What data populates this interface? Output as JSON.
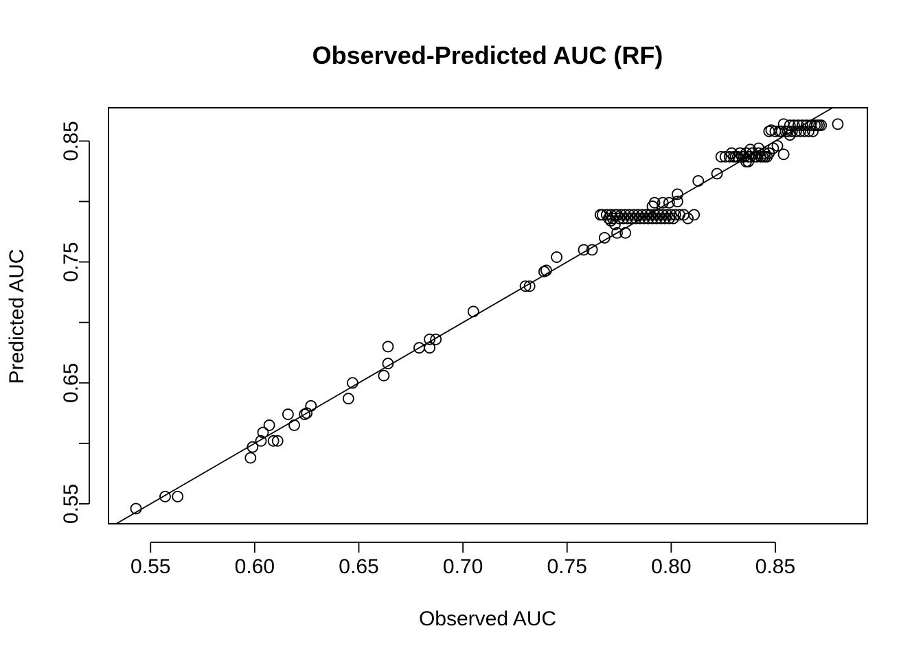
{
  "chart_data": {
    "type": "scatter",
    "title": "Observed-Predicted AUC (RF)",
    "xlabel": "Observed AUC",
    "ylabel": "Predicted AUC",
    "xlim": [
      0.5298,
      0.8942
    ],
    "ylim": [
      0.5335,
      0.8775
    ],
    "xticks": [
      0.55,
      0.6,
      0.65,
      0.7,
      0.75,
      0.8,
      0.85
    ],
    "xtick_labels": [
      "0.55",
      "0.60",
      "0.65",
      "0.70",
      "0.75",
      "0.80",
      "0.85"
    ],
    "yticks": [
      0.55,
      0.6,
      0.65,
      0.7,
      0.75,
      0.8,
      0.85
    ],
    "ytick_labels": [
      "0.55",
      "",
      "0.65",
      "",
      "0.75",
      "",
      "0.85"
    ],
    "grid": false,
    "fit_line": {
      "intercept": 0.0,
      "slope": 1.0
    },
    "points": [
      [
        0.543,
        0.546
      ],
      [
        0.557,
        0.556
      ],
      [
        0.563,
        0.556
      ],
      [
        0.598,
        0.588
      ],
      [
        0.599,
        0.597
      ],
      [
        0.603,
        0.602
      ],
      [
        0.604,
        0.609
      ],
      [
        0.607,
        0.615
      ],
      [
        0.609,
        0.602
      ],
      [
        0.611,
        0.602
      ],
      [
        0.616,
        0.624
      ],
      [
        0.619,
        0.615
      ],
      [
        0.624,
        0.624
      ],
      [
        0.625,
        0.625
      ],
      [
        0.627,
        0.631
      ],
      [
        0.645,
        0.637
      ],
      [
        0.647,
        0.65
      ],
      [
        0.662,
        0.656
      ],
      [
        0.664,
        0.666
      ],
      [
        0.664,
        0.68
      ],
      [
        0.679,
        0.679
      ],
      [
        0.684,
        0.679
      ],
      [
        0.684,
        0.686
      ],
      [
        0.687,
        0.686
      ],
      [
        0.705,
        0.709
      ],
      [
        0.73,
        0.73
      ],
      [
        0.732,
        0.73
      ],
      [
        0.739,
        0.742
      ],
      [
        0.74,
        0.743
      ],
      [
        0.745,
        0.754
      ],
      [
        0.758,
        0.76
      ],
      [
        0.762,
        0.76
      ],
      [
        0.766,
        0.789
      ],
      [
        0.767,
        0.789
      ],
      [
        0.768,
        0.77
      ],
      [
        0.769,
        0.789
      ],
      [
        0.77,
        0.786
      ],
      [
        0.771,
        0.789
      ],
      [
        0.771,
        0.784
      ],
      [
        0.772,
        0.786
      ],
      [
        0.773,
        0.789
      ],
      [
        0.773,
        0.781
      ],
      [
        0.774,
        0.774
      ],
      [
        0.774,
        0.789
      ],
      [
        0.775,
        0.786
      ],
      [
        0.776,
        0.789
      ],
      [
        0.777,
        0.786
      ],
      [
        0.778,
        0.774
      ],
      [
        0.778,
        0.789
      ],
      [
        0.779,
        0.786
      ],
      [
        0.78,
        0.789
      ],
      [
        0.781,
        0.786
      ],
      [
        0.782,
        0.789
      ],
      [
        0.783,
        0.786
      ],
      [
        0.784,
        0.789
      ],
      [
        0.785,
        0.786
      ],
      [
        0.786,
        0.789
      ],
      [
        0.787,
        0.786
      ],
      [
        0.788,
        0.789
      ],
      [
        0.789,
        0.786
      ],
      [
        0.79,
        0.789
      ],
      [
        0.791,
        0.786
      ],
      [
        0.791,
        0.796
      ],
      [
        0.792,
        0.789
      ],
      [
        0.792,
        0.799
      ],
      [
        0.793,
        0.786
      ],
      [
        0.794,
        0.789
      ],
      [
        0.795,
        0.786
      ],
      [
        0.796,
        0.789
      ],
      [
        0.796,
        0.799
      ],
      [
        0.797,
        0.786
      ],
      [
        0.798,
        0.789
      ],
      [
        0.799,
        0.799
      ],
      [
        0.799,
        0.786
      ],
      [
        0.8,
        0.789
      ],
      [
        0.801,
        0.786
      ],
      [
        0.802,
        0.789
      ],
      [
        0.803,
        0.8
      ],
      [
        0.803,
        0.806
      ],
      [
        0.804,
        0.789
      ],
      [
        0.806,
        0.789
      ],
      [
        0.808,
        0.786
      ],
      [
        0.811,
        0.789
      ],
      [
        0.813,
        0.817
      ],
      [
        0.822,
        0.823
      ],
      [
        0.824,
        0.837
      ],
      [
        0.826,
        0.837
      ],
      [
        0.828,
        0.837
      ],
      [
        0.829,
        0.84
      ],
      [
        0.83,
        0.837
      ],
      [
        0.831,
        0.837
      ],
      [
        0.832,
        0.837
      ],
      [
        0.833,
        0.84
      ],
      [
        0.834,
        0.837
      ],
      [
        0.835,
        0.837
      ],
      [
        0.836,
        0.833
      ],
      [
        0.836,
        0.84
      ],
      [
        0.837,
        0.837
      ],
      [
        0.837,
        0.833
      ],
      [
        0.838,
        0.843
      ],
      [
        0.838,
        0.837
      ],
      [
        0.839,
        0.84
      ],
      [
        0.84,
        0.837
      ],
      [
        0.841,
        0.837
      ],
      [
        0.842,
        0.844
      ],
      [
        0.842,
        0.84
      ],
      [
        0.843,
        0.837
      ],
      [
        0.844,
        0.837
      ],
      [
        0.845,
        0.84
      ],
      [
        0.845,
        0.837
      ],
      [
        0.846,
        0.837
      ],
      [
        0.847,
        0.858
      ],
      [
        0.847,
        0.84
      ],
      [
        0.848,
        0.859
      ],
      [
        0.849,
        0.844
      ],
      [
        0.85,
        0.858
      ],
      [
        0.851,
        0.846
      ],
      [
        0.852,
        0.858
      ],
      [
        0.853,
        0.858
      ],
      [
        0.854,
        0.839
      ],
      [
        0.854,
        0.864
      ],
      [
        0.855,
        0.858
      ],
      [
        0.856,
        0.858
      ],
      [
        0.857,
        0.855
      ],
      [
        0.857,
        0.863
      ],
      [
        0.858,
        0.858
      ],
      [
        0.859,
        0.863
      ],
      [
        0.86,
        0.858
      ],
      [
        0.861,
        0.863
      ],
      [
        0.862,
        0.858
      ],
      [
        0.863,
        0.863
      ],
      [
        0.864,
        0.858
      ],
      [
        0.865,
        0.863
      ],
      [
        0.866,
        0.858
      ],
      [
        0.867,
        0.863
      ],
      [
        0.868,
        0.858
      ],
      [
        0.869,
        0.863
      ],
      [
        0.87,
        0.863
      ],
      [
        0.871,
        0.863
      ],
      [
        0.872,
        0.863
      ],
      [
        0.88,
        0.864
      ]
    ]
  }
}
